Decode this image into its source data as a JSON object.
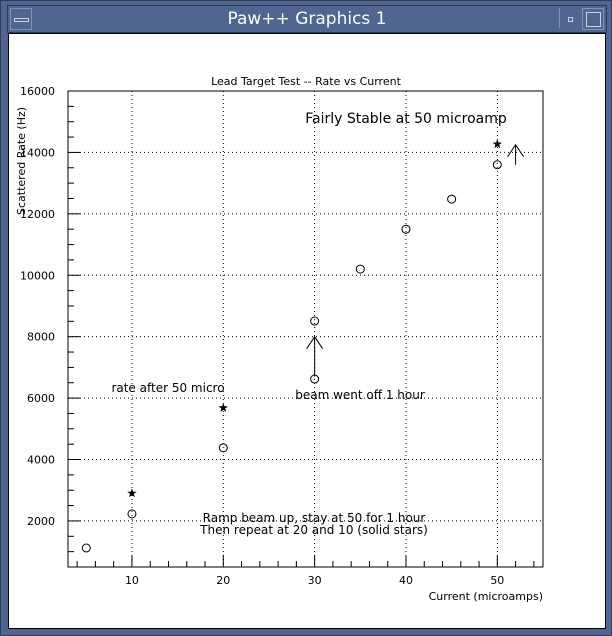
{
  "window": {
    "title": "Paw++ Graphics 1"
  },
  "chart_data": {
    "type": "scatter",
    "title": "Lead Target Test -- Rate vs Current",
    "xlabel": "Current (microamps)",
    "ylabel": "Scattered Rate (Hz)",
    "xlim": [
      3,
      55
    ],
    "ylim": [
      500,
      16000
    ],
    "xticks": [
      10,
      20,
      30,
      40,
      50
    ],
    "yticks": [
      2000,
      4000,
      6000,
      8000,
      10000,
      12000,
      14000,
      16000
    ],
    "grid": true,
    "series": [
      {
        "marker": "open-circle",
        "x": [
          5,
          10,
          20,
          30,
          30,
          35,
          40,
          45,
          50
        ],
        "y": [
          1120,
          2230,
          4380,
          6620,
          8510,
          10200,
          11500,
          12480,
          13600
        ]
      },
      {
        "marker": "solid-star",
        "x": [
          10,
          20,
          50
        ],
        "y": [
          2900,
          5680,
          14270
        ]
      }
    ],
    "annotations": [
      {
        "text": "Fairly Stable at 50 microamp"
      },
      {
        "text": "rate after 50 micro"
      },
      {
        "text": "beam went off 1 hour"
      },
      {
        "text": "Ramp beam up, stay at 50 for 1 hour"
      },
      {
        "text": "Then repeat at 20 and 10 (solid stars)"
      }
    ],
    "arrows": [
      {
        "x": 30,
        "y_from": 6700,
        "y_to": 8000
      },
      {
        "x": 52,
        "y_from": 13600,
        "y_to": 14250
      }
    ]
  }
}
